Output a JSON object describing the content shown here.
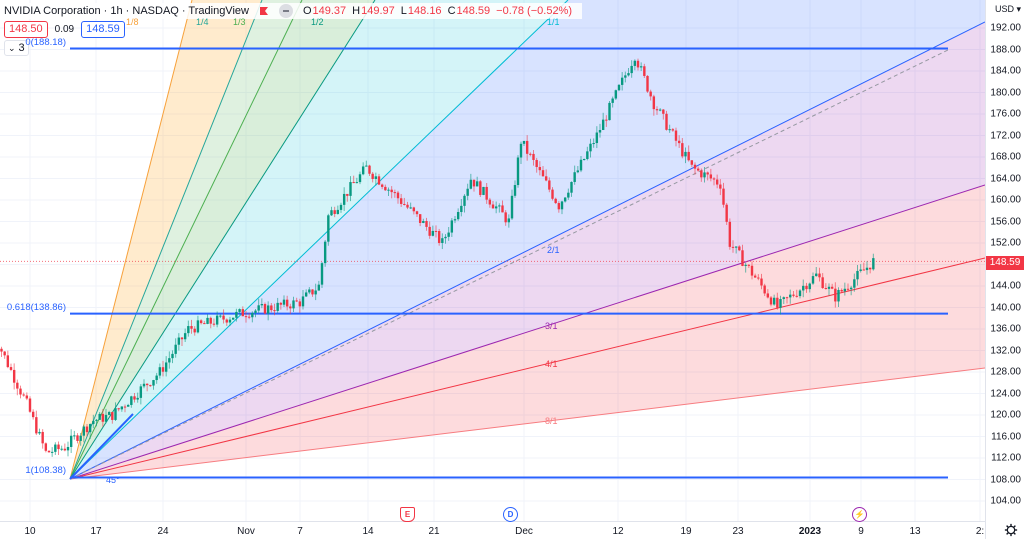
{
  "header": {
    "title": "NVIDIA Corporation · 1h · NASDAQ · TradingView",
    "ohlc": [
      {
        "label": "O",
        "value": "149.37"
      },
      {
        "label": "H",
        "value": "149.97"
      },
      {
        "label": "L",
        "value": "148.16"
      },
      {
        "label": "C",
        "value": "148.59"
      }
    ],
    "change": "−0.78 (−0.52%)",
    "bid": "148.50",
    "spread": "0.09",
    "ask": "148.59",
    "indicators_collapsed_count": "3"
  },
  "price_axis": {
    "currency": "USD",
    "ticks": [
      "192.00",
      "188.00",
      "184.00",
      "180.00",
      "176.00",
      "172.00",
      "168.00",
      "164.00",
      "160.00",
      "156.00",
      "152.00",
      "148.00",
      "144.00",
      "140.00",
      "136.00",
      "132.00",
      "128.00",
      "124.00",
      "120.00",
      "116.00",
      "112.00",
      "108.00",
      "104.00"
    ],
    "last_price": "148.59",
    "last_price_color": "#f23645"
  },
  "time_axis": {
    "ticks": [
      {
        "label": "10",
        "x": 30
      },
      {
        "label": "17",
        "x": 96
      },
      {
        "label": "24",
        "x": 163
      },
      {
        "label": "Nov",
        "x": 246
      },
      {
        "label": "7",
        "x": 300
      },
      {
        "label": "14",
        "x": 368
      },
      {
        "label": "21",
        "x": 434
      },
      {
        "label": "Dec",
        "x": 524
      },
      {
        "label": "12",
        "x": 618
      },
      {
        "label": "19",
        "x": 686
      },
      {
        "label": "23",
        "x": 738
      },
      {
        "label": "2023",
        "x": 810,
        "bold": true
      },
      {
        "label": "9",
        "x": 861
      },
      {
        "label": "13",
        "x": 915
      },
      {
        "label": "2:",
        "x": 980
      }
    ]
  },
  "events": [
    {
      "type": "earnings",
      "glyph": "E",
      "x": 407
    },
    {
      "type": "dividend",
      "glyph": "D",
      "x": 510
    },
    {
      "type": "split",
      "glyph": "⚡",
      "x": 859
    }
  ],
  "fib_retracement": {
    "levels": [
      {
        "label": "0(188.18)",
        "price": 188.18
      },
      {
        "label": "0.618(138.86)",
        "price": 138.86
      },
      {
        "label": "1(108.38)",
        "price": 108.38
      }
    ],
    "color": "#2962ff"
  },
  "gann_fan": {
    "labels": [
      "1/8",
      "1/4",
      "1/3",
      "1/2",
      "1/1",
      "2/1",
      "3/1",
      "4/1",
      "8/1",
      "45°"
    ]
  },
  "chart_data": {
    "type": "candlestick",
    "title": "NVIDIA Corporation · 1h · NASDAQ",
    "ylabel": "USD",
    "ylim": [
      102,
      194
    ],
    "x_ticks": [
      "10",
      "17",
      "24",
      "Nov",
      "7",
      "14",
      "21",
      "Dec",
      "12",
      "19",
      "23",
      "2023",
      "9",
      "13"
    ],
    "close_path": [
      {
        "t": "Oct 6",
        "price": 137
      },
      {
        "t": "Oct 10",
        "price": 122
      },
      {
        "t": "Oct 12",
        "price": 113
      },
      {
        "t": "Oct 14",
        "price": 114
      },
      {
        "t": "Oct 17",
        "price": 119
      },
      {
        "t": "Oct 19",
        "price": 120
      },
      {
        "t": "Oct 24",
        "price": 128
      },
      {
        "t": "Oct 27",
        "price": 136
      },
      {
        "t": "Nov 1",
        "price": 139
      },
      {
        "t": "Nov 7",
        "price": 141
      },
      {
        "t": "Nov 9",
        "price": 144
      },
      {
        "t": "Nov 10",
        "price": 157
      },
      {
        "t": "Nov 14",
        "price": 166
      },
      {
        "t": "Nov 17",
        "price": 161
      },
      {
        "t": "Nov 22",
        "price": 152
      },
      {
        "t": "Nov 25",
        "price": 164
      },
      {
        "t": "Nov 29",
        "price": 156
      },
      {
        "t": "Dec 1",
        "price": 171
      },
      {
        "t": "Dec 5",
        "price": 159
      },
      {
        "t": "Dec 9",
        "price": 172
      },
      {
        "t": "Dec 13",
        "price": 187
      },
      {
        "t": "Dec 15",
        "price": 178
      },
      {
        "t": "Dec 19",
        "price": 166
      },
      {
        "t": "Dec 22",
        "price": 163
      },
      {
        "t": "Dec 23",
        "price": 152
      },
      {
        "t": "Dec 28",
        "price": 140
      },
      {
        "t": "Jan 3",
        "price": 146
      },
      {
        "t": "Jan 5",
        "price": 142
      },
      {
        "t": "Jan 9",
        "price": 148.59
      }
    ],
    "last": {
      "open": 149.37,
      "high": 149.97,
      "low": 148.16,
      "close": 148.59,
      "change": -0.78,
      "change_pct": -0.52
    }
  }
}
